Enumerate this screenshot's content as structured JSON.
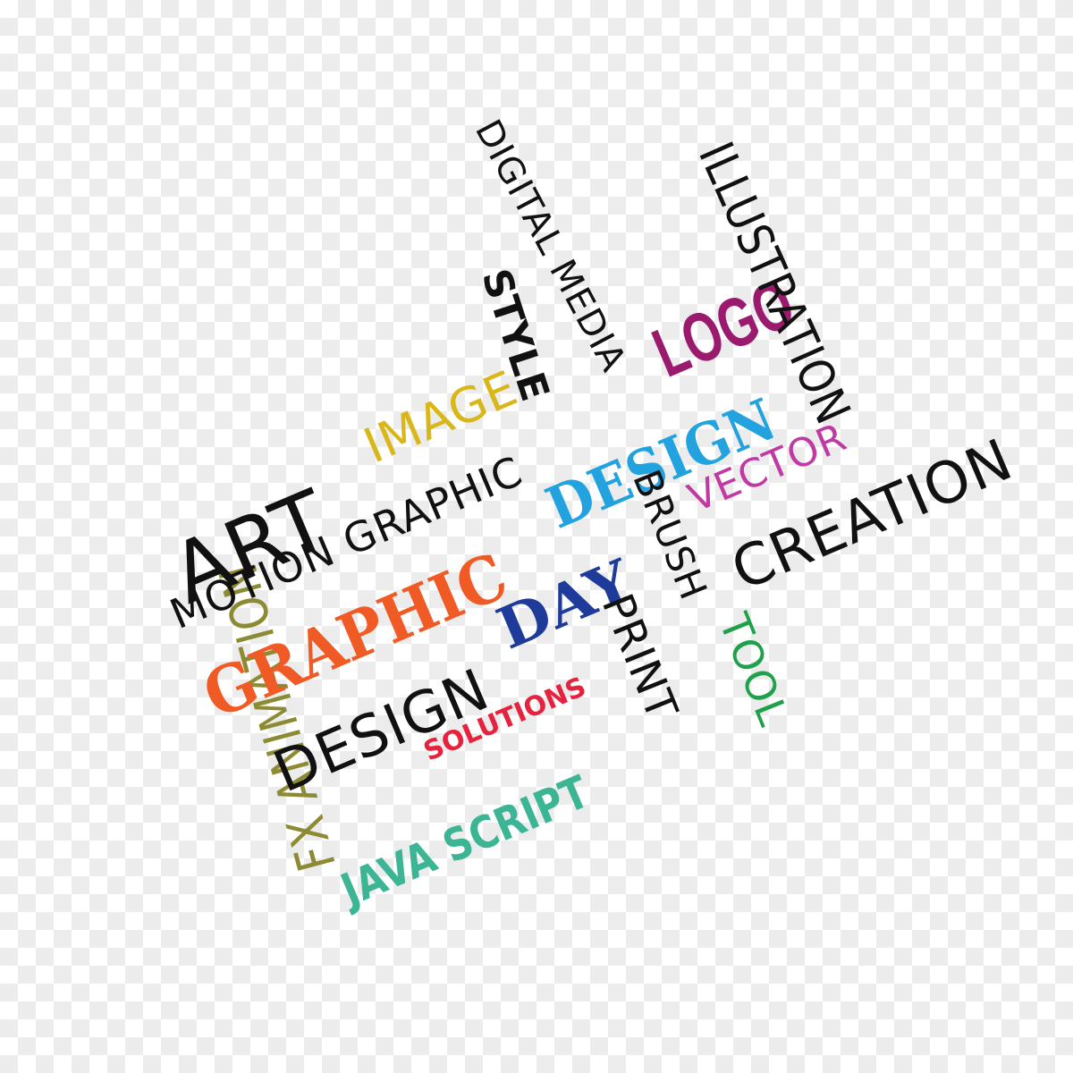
{
  "words": {
    "fx_animation": "FX ANIMATION",
    "art": "ART",
    "image": "IMAGE",
    "motion_graphic": "MOTION GRAPHIC",
    "digital_media": "DIGITAL MEDIA",
    "style": "STYLE",
    "logo": "LOGO",
    "illustration": "ILLUSTRATION",
    "graphic_design_blue": "DESIGN",
    "graphic_orange": "GRAPHIC",
    "vector": "VECTOR",
    "creation": "CREATION",
    "brush": "BRUSH",
    "day": "DAY",
    "design": "DESIGN",
    "print": "PRINT",
    "tool": "TOOL",
    "solutions": "SOLUTIONS",
    "java_script": "JAVA SCRIPT"
  },
  "colors": {
    "background": "#ffffff",
    "checker": "#ececec",
    "olive": "#8c8a33",
    "yellow": "#d9b619",
    "purple": "#9a1b6e",
    "blue": "#22a2df",
    "orange": "#f05a24",
    "magenta": "#c13aa3",
    "navy": "#1f3b99",
    "green": "#1fa04a",
    "red": "#e5233e",
    "teal": "#3bb594",
    "black": "#111111"
  }
}
